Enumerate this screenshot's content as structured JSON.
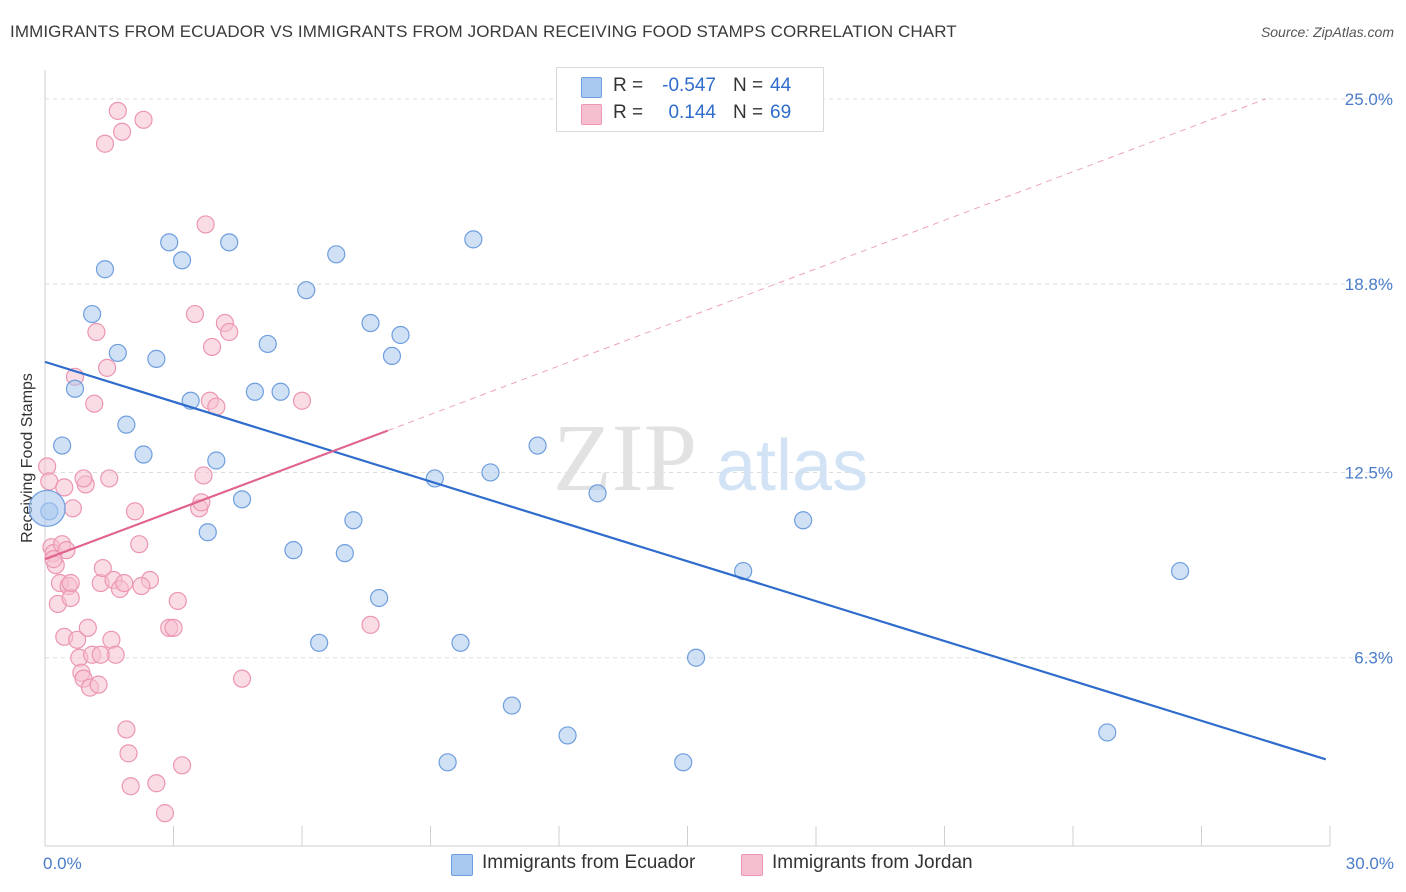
{
  "title": "IMMIGRANTS FROM ECUADOR VS IMMIGRANTS FROM JORDAN RECEIVING FOOD STAMPS CORRELATION CHART",
  "source": "Source: ZipAtlas.com",
  "watermark": {
    "zip": "ZIP",
    "atlas": "atlas"
  },
  "legend": {
    "ecuador": {
      "r_label": "R =",
      "r_value": "-0.547",
      "n_label": "N =",
      "n_value": "44"
    },
    "jordan": {
      "r_label": "R =",
      "r_value": "0.144",
      "n_label": "N =",
      "n_value": "69"
    }
  },
  "colors": {
    "ecuador_fill": "#a9c8ef",
    "ecuador_stroke": "#6f9ede",
    "ecuador_line": "#2f6ccc",
    "jordan_fill": "#f6bfd0",
    "jordan_stroke": "#ec96b1",
    "jordan_line": "#e0648e",
    "axis_text": "#4a7cc9",
    "grid": "#dddddd"
  },
  "chart_data": {
    "type": "scatter",
    "title": "IMMIGRANTS FROM ECUADOR VS IMMIGRANTS FROM JORDAN RECEIVING FOOD STAMPS CORRELATION CHART",
    "xlabel": "",
    "ylabel": "Receiving Food Stamps",
    "xlim": [
      0,
      30
    ],
    "ylim": [
      0,
      25.8
    ],
    "x_tick_labels": [
      "0.0%",
      "30.0%"
    ],
    "y_ticks": [
      6.3,
      12.5,
      18.8,
      25.0
    ],
    "y_tick_labels": [
      "6.3%",
      "12.5%",
      "18.8%",
      "25.0%"
    ],
    "grid": true,
    "legend_position": "top-center",
    "series": [
      {
        "name": "Immigrants from Ecuador",
        "color": "#a9c8ef",
        "points": [
          [
            0.1,
            11.2
          ],
          [
            0.4,
            13.4
          ],
          [
            0.7,
            15.3
          ],
          [
            1.1,
            17.8
          ],
          [
            1.4,
            19.3
          ],
          [
            1.7,
            16.5
          ],
          [
            1.9,
            14.1
          ],
          [
            2.3,
            13.1
          ],
          [
            2.6,
            16.3
          ],
          [
            2.9,
            20.2
          ],
          [
            3.2,
            19.6
          ],
          [
            3.4,
            14.9
          ],
          [
            3.8,
            10.5
          ],
          [
            4.0,
            12.9
          ],
          [
            4.3,
            20.2
          ],
          [
            4.6,
            11.6
          ],
          [
            4.9,
            15.2
          ],
          [
            5.2,
            16.8
          ],
          [
            5.5,
            15.2
          ],
          [
            5.8,
            9.9
          ],
          [
            6.1,
            18.6
          ],
          [
            6.4,
            6.8
          ],
          [
            6.8,
            19.8
          ],
          [
            7.0,
            9.8
          ],
          [
            7.2,
            10.9
          ],
          [
            7.6,
            17.5
          ],
          [
            7.8,
            8.3
          ],
          [
            8.1,
            16.4
          ],
          [
            8.3,
            17.1
          ],
          [
            9.1,
            12.3
          ],
          [
            9.4,
            2.8
          ],
          [
            9.7,
            6.8
          ],
          [
            10.0,
            20.3
          ],
          [
            10.4,
            12.5
          ],
          [
            10.9,
            4.7
          ],
          [
            11.5,
            13.4
          ],
          [
            12.2,
            3.7
          ],
          [
            12.9,
            11.8
          ],
          [
            14.9,
            2.8
          ],
          [
            15.2,
            6.3
          ],
          [
            16.3,
            9.2
          ],
          [
            17.7,
            10.9
          ],
          [
            24.8,
            3.8
          ],
          [
            26.5,
            9.2
          ]
        ],
        "trendline": {
          "x": [
            0.0,
            29.9
          ],
          "y": [
            16.2,
            2.9
          ]
        }
      },
      {
        "name": "Immigrants from Jordan",
        "color": "#f6bfd0",
        "points": [
          [
            0.05,
            12.7
          ],
          [
            0.1,
            12.2
          ],
          [
            0.15,
            10.0
          ],
          [
            0.2,
            9.8
          ],
          [
            0.25,
            9.4
          ],
          [
            0.3,
            8.1
          ],
          [
            0.35,
            8.8
          ],
          [
            0.4,
            10.1
          ],
          [
            0.45,
            7.0
          ],
          [
            0.5,
            9.9
          ],
          [
            0.55,
            8.7
          ],
          [
            0.6,
            8.3
          ],
          [
            0.65,
            11.3
          ],
          [
            0.7,
            15.7
          ],
          [
            0.75,
            6.9
          ],
          [
            0.8,
            6.3
          ],
          [
            0.85,
            5.8
          ],
          [
            0.9,
            5.6
          ],
          [
            0.95,
            12.1
          ],
          [
            1.0,
            7.3
          ],
          [
            1.05,
            5.3
          ],
          [
            1.1,
            6.4
          ],
          [
            1.15,
            14.8
          ],
          [
            1.2,
            17.2
          ],
          [
            1.25,
            5.4
          ],
          [
            1.3,
            8.8
          ],
          [
            1.35,
            9.3
          ],
          [
            1.4,
            23.5
          ],
          [
            1.45,
            16.0
          ],
          [
            1.5,
            12.3
          ],
          [
            1.55,
            6.9
          ],
          [
            1.6,
            8.9
          ],
          [
            1.65,
            6.4
          ],
          [
            1.7,
            24.6
          ],
          [
            1.75,
            8.6
          ],
          [
            1.8,
            23.9
          ],
          [
            1.85,
            8.8
          ],
          [
            1.9,
            3.9
          ],
          [
            1.95,
            3.1
          ],
          [
            2.0,
            2.0
          ],
          [
            2.1,
            11.2
          ],
          [
            2.2,
            10.1
          ],
          [
            2.3,
            24.3
          ],
          [
            2.45,
            8.9
          ],
          [
            2.6,
            2.1
          ],
          [
            2.8,
            1.1
          ],
          [
            2.9,
            7.3
          ],
          [
            3.0,
            7.3
          ],
          [
            3.1,
            8.2
          ],
          [
            3.2,
            2.7
          ],
          [
            3.5,
            17.8
          ],
          [
            3.6,
            11.3
          ],
          [
            3.65,
            11.5
          ],
          [
            3.7,
            12.4
          ],
          [
            3.75,
            20.8
          ],
          [
            3.85,
            14.9
          ],
          [
            3.9,
            16.7
          ],
          [
            4.0,
            14.7
          ],
          [
            4.2,
            17.5
          ],
          [
            4.3,
            17.2
          ],
          [
            4.6,
            5.6
          ],
          [
            6.0,
            14.9
          ],
          [
            7.6,
            7.4
          ],
          [
            0.2,
            9.6
          ],
          [
            0.6,
            8.8
          ],
          [
            1.3,
            6.4
          ],
          [
            0.9,
            12.3
          ],
          [
            2.25,
            8.7
          ],
          [
            0.45,
            12.0
          ]
        ],
        "trendline": {
          "x": [
            0.0,
            8.0
          ],
          "y": [
            9.6,
            13.9
          ]
        },
        "trendline_extension": {
          "x": [
            8.0,
            28.5
          ],
          "y": [
            13.9,
            25.0
          ]
        }
      }
    ]
  },
  "bottom_legend": {
    "ecuador_label": "Immigrants from Ecuador",
    "jordan_label": "Immigrants from Jordan"
  }
}
